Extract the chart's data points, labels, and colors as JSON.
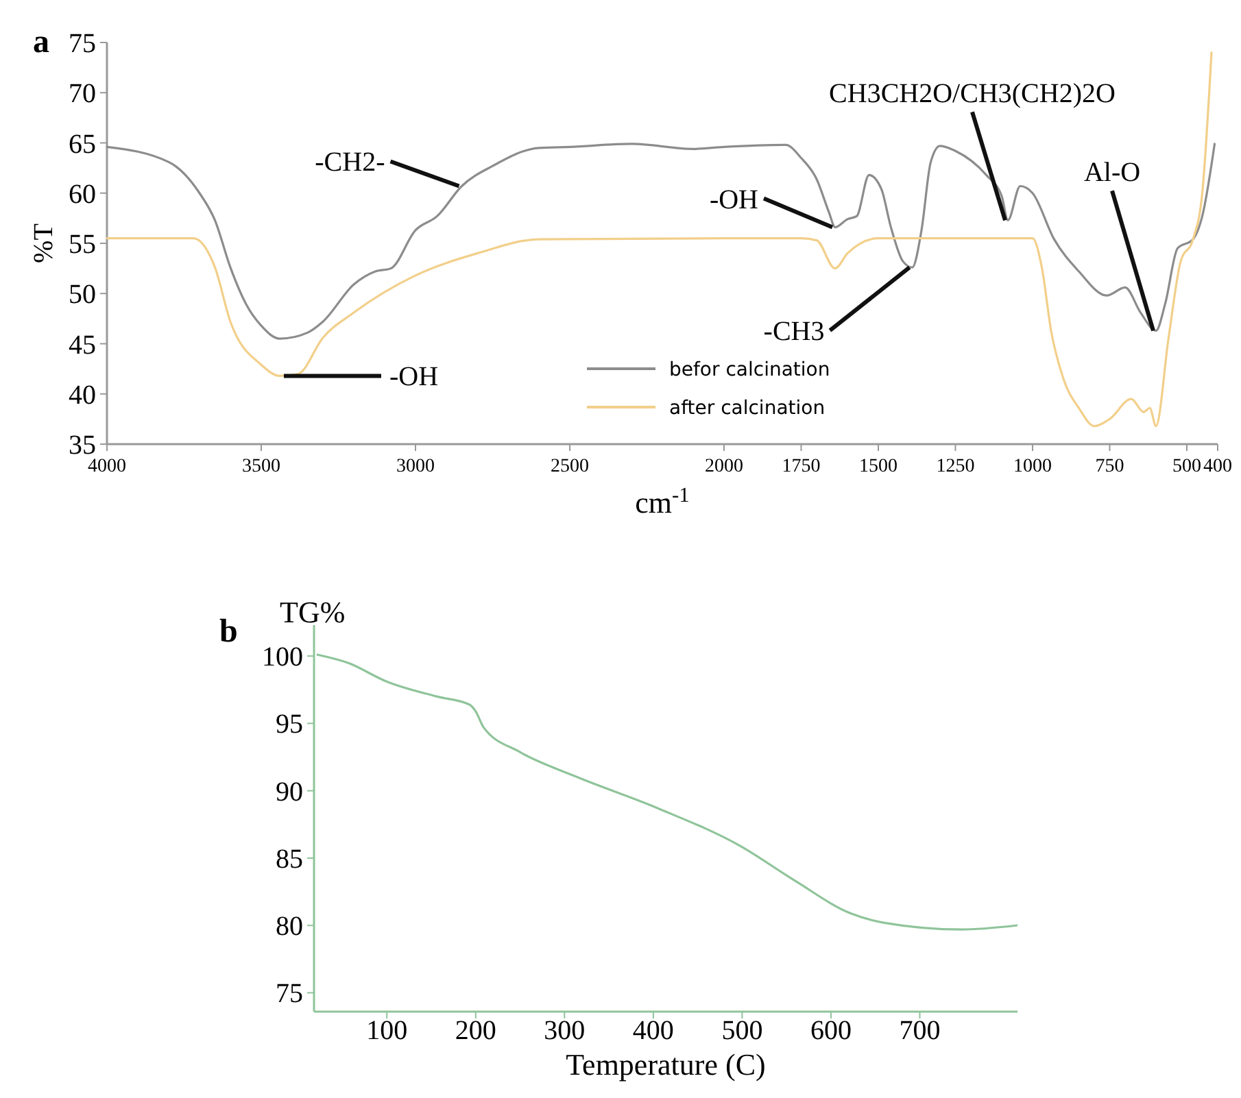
{
  "chart_data": [
    {
      "type": "line",
      "title": "a",
      "xlabel": "cm$^{-1}$",
      "ylabel": "%T",
      "xlim": [
        4000,
        400
      ],
      "xticks": [
        4000,
        3500,
        3000,
        2500,
        2000,
        1750,
        1500,
        1250,
        1000,
        750,
        500,
        400
      ],
      "ylim": [
        35,
        75
      ],
      "yticks": [
        35,
        40,
        45,
        50,
        55,
        60,
        65,
        70,
        75
      ],
      "grid": false,
      "legend": "bottom",
      "annotations": [
        {
          "text": "-CH2-",
          "x": 2850,
          "y": 60.7
        },
        {
          "text": "-OH",
          "x": 1640,
          "y": 56.6
        },
        {
          "text": "-OH",
          "x": 3440,
          "y": 41.8
        },
        {
          "text": "-CH3",
          "x": 1390,
          "y": 52.6
        },
        {
          "text": "CH3CH2O/CH3(CH2)2O",
          "x": 1080,
          "y": 57.3
        },
        {
          "text": "Al-O",
          "x": 600,
          "y": 46.3
        }
      ],
      "series": [
        {
          "name": "befor calcination",
          "color": "#8c8c8c",
          "x": [
            4000,
            3800,
            3700,
            3650,
            3600,
            3550,
            3500,
            3440,
            3350,
            3300,
            3200,
            3130,
            3080,
            3000,
            2930,
            2850,
            2750,
            2600,
            2500,
            2300,
            2100,
            2000,
            1800,
            1750,
            1700,
            1660,
            1640,
            1600,
            1570,
            1530,
            1490,
            1460,
            1420,
            1390,
            1360,
            1330,
            1300,
            1250,
            1150,
            1100,
            1080,
            1040,
            1000,
            930,
            850,
            760,
            700,
            650,
            600,
            570,
            530,
            480,
            450,
            410
          ],
          "values": [
            64.6,
            63.1,
            60,
            57.3,
            52.6,
            49,
            46.8,
            45.5,
            46.1,
            47.2,
            50.9,
            52.2,
            52.5,
            56.3,
            57.7,
            60.7,
            62.7,
            64.5,
            64.6,
            64.9,
            64.4,
            64.6,
            64.8,
            63.5,
            61.4,
            58.1,
            56.6,
            57.4,
            57.7,
            61.8,
            60.4,
            56.7,
            53.2,
            52.6,
            56.3,
            63.1,
            64.7,
            64.2,
            61.8,
            59.7,
            57.3,
            60.7,
            60,
            55.4,
            52.2,
            49.8,
            50.6,
            48.1,
            46.3,
            49,
            54.5,
            55.4,
            57.7,
            64.9
          ]
        },
        {
          "name": "after calcination",
          "color": "#f2cf8a",
          "x": [
            4000,
            3720,
            3650,
            3600,
            3500,
            3440,
            3380,
            3300,
            3200,
            3000,
            2800,
            2600,
            2000,
            1750,
            1700,
            1640,
            1600,
            1500,
            1000,
            970,
            940,
            900,
            850,
            800,
            750,
            680,
            640,
            620,
            600,
            560,
            520,
            480,
            450,
            420
          ],
          "values": [
            55.5,
            55.5,
            52.6,
            47.2,
            42.9,
            41.8,
            42,
            45.6,
            48.1,
            51.8,
            54,
            55.4,
            55.5,
            55.5,
            55.3,
            52.5,
            54,
            55.5,
            55.5,
            52.6,
            46.3,
            41.5,
            38.6,
            36.8,
            37.5,
            39.5,
            38.2,
            38.6,
            36.8,
            45.4,
            53.2,
            55.4,
            60,
            74
          ]
        }
      ]
    },
    {
      "type": "line",
      "title": "b",
      "xlabel": "Temperature (C)",
      "ylabel": "TG%",
      "xlim": [
        18,
        810
      ],
      "xticks": [
        100,
        200,
        300,
        400,
        500,
        600,
        700
      ],
      "ylim": [
        73.6,
        102.3
      ],
      "yticks": [
        75,
        80,
        85,
        90,
        95,
        100
      ],
      "grid": false,
      "series": [
        {
          "color": "#8fc49a",
          "x": [
            22,
            56,
            100,
            156,
            193,
            200,
            209,
            249,
            311,
            405,
            498,
            560,
            622,
            660,
            747,
            809
          ],
          "values": [
            100.1,
            99.5,
            98.1,
            97,
            96.4,
            95.9,
            94.7,
            92.9,
            91.1,
            88.7,
            85.9,
            83.3,
            80.9,
            80.2,
            79.7,
            80
          ]
        }
      ]
    }
  ]
}
